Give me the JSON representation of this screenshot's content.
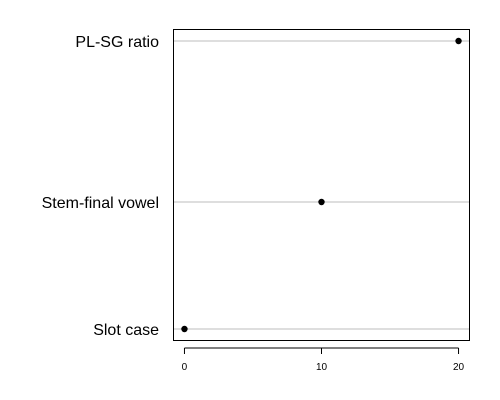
{
  "chart_data": {
    "type": "scatter",
    "title": "",
    "xlabel": "",
    "ylabel": "",
    "categories": [
      "Slot case",
      "Stem-final vowel",
      "PL-SG ratio"
    ],
    "values": [
      0,
      10,
      20
    ],
    "xlim": [
      -0.8,
      20.8
    ],
    "xticks": [
      0,
      10,
      20
    ],
    "grid": "horizontal lines at each category",
    "legend": "none",
    "colors": {
      "point": "#000000",
      "gridline": "#bebebe",
      "frame": "#000000"
    }
  }
}
